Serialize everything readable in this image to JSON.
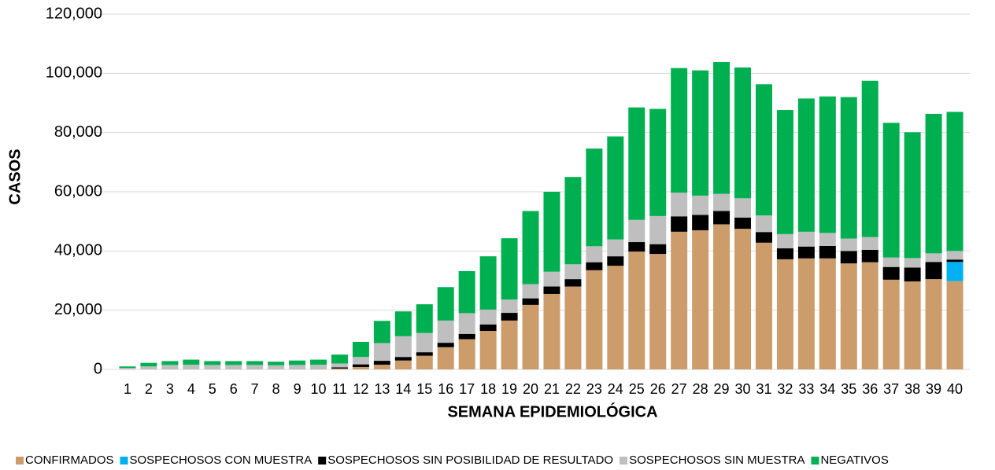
{
  "chart_data": {
    "type": "stacked-bar",
    "x_label": "SEMANA EPIDEMIOLÓGICA",
    "y_label": "CASOS",
    "categories": [
      "1",
      "2",
      "3",
      "4",
      "5",
      "6",
      "7",
      "8",
      "9",
      "10",
      "11",
      "12",
      "13",
      "14",
      "15",
      "16",
      "17",
      "18",
      "19",
      "20",
      "21",
      "22",
      "23",
      "24",
      "25",
      "26",
      "27",
      "28",
      "29",
      "30",
      "31",
      "32",
      "33",
      "34",
      "35",
      "36",
      "37",
      "38",
      "39",
      "40"
    ],
    "series": [
      {
        "name": "CONFIRMADOS",
        "color": "#cc9c6b",
        "values": [
          0,
          0,
          0,
          0,
          0,
          0,
          0,
          0,
          0,
          100,
          300,
          800,
          1600,
          3000,
          4600,
          7500,
          10200,
          13000,
          16500,
          21800,
          25500,
          28000,
          33500,
          35000,
          39800,
          39000,
          46500,
          47000,
          49000,
          47500,
          42800,
          37200,
          37500,
          37500,
          35800,
          36200,
          30300,
          29700,
          30500,
          29800
        ]
      },
      {
        "name": "SOSPECHOSOS CON MUESTRA",
        "color": "#00b0f0",
        "values": [
          0,
          0,
          0,
          0,
          0,
          0,
          0,
          0,
          0,
          0,
          0,
          0,
          0,
          0,
          0,
          0,
          0,
          0,
          0,
          0,
          0,
          0,
          0,
          0,
          0,
          0,
          0,
          0,
          0,
          0,
          0,
          0,
          0,
          0,
          0,
          0,
          0,
          0,
          0,
          6500
        ]
      },
      {
        "name": "SOSPECHOSOS SIN POSIBILIDAD DE RESULTADO",
        "color": "#000000",
        "values": [
          0,
          0,
          0,
          0,
          0,
          0,
          0,
          0,
          0,
          0,
          400,
          900,
          1300,
          1200,
          1200,
          1500,
          1800,
          2200,
          2600,
          2200,
          2500,
          2500,
          2700,
          3200,
          3200,
          3300,
          5200,
          5200,
          4500,
          3800,
          3600,
          3700,
          4000,
          4200,
          4200,
          4200,
          4300,
          4700,
          5800,
          800
        ]
      },
      {
        "name": "SOSPECHOSOS SIN MUESTRA",
        "color": "#bfbfbf",
        "values": [
          500,
          1000,
          1500,
          1600,
          1500,
          1500,
          1500,
          1400,
          1500,
          1500,
          1300,
          2500,
          6000,
          7000,
          6500,
          7500,
          7000,
          5000,
          4500,
          4800,
          5000,
          5000,
          5400,
          5700,
          7500,
          9500,
          8000,
          6500,
          5800,
          6500,
          5600,
          4800,
          5000,
          4400,
          4200,
          4300,
          3200,
          3200,
          2900,
          2900
        ]
      },
      {
        "name": "NEGATIVOS",
        "color": "#00b050",
        "values": [
          500,
          1200,
          1300,
          1700,
          1300,
          1300,
          1300,
          1200,
          1500,
          1700,
          3000,
          5100,
          7500,
          8400,
          9700,
          11300,
          14200,
          18000,
          20700,
          24700,
          27000,
          29500,
          33000,
          34800,
          38000,
          36200,
          42100,
          42300,
          44500,
          44200,
          44300,
          41900,
          45000,
          46100,
          47800,
          52800,
          45500,
          42500,
          47100,
          47000
        ]
      }
    ],
    "ylim": [
      0,
      120000
    ],
    "yticks": [
      0,
      {
        "value": 20000,
        "label": "20,000"
      },
      {
        "value": 40000,
        "label": "40,000"
      },
      {
        "value": 60000,
        "label": "60,000"
      },
      {
        "value": 80000,
        "label": "80,000"
      },
      {
        "value": 100000,
        "label": "100,000"
      },
      {
        "value": 120000,
        "label": "120,000"
      }
    ],
    "grid": true,
    "legend": "bottom"
  }
}
